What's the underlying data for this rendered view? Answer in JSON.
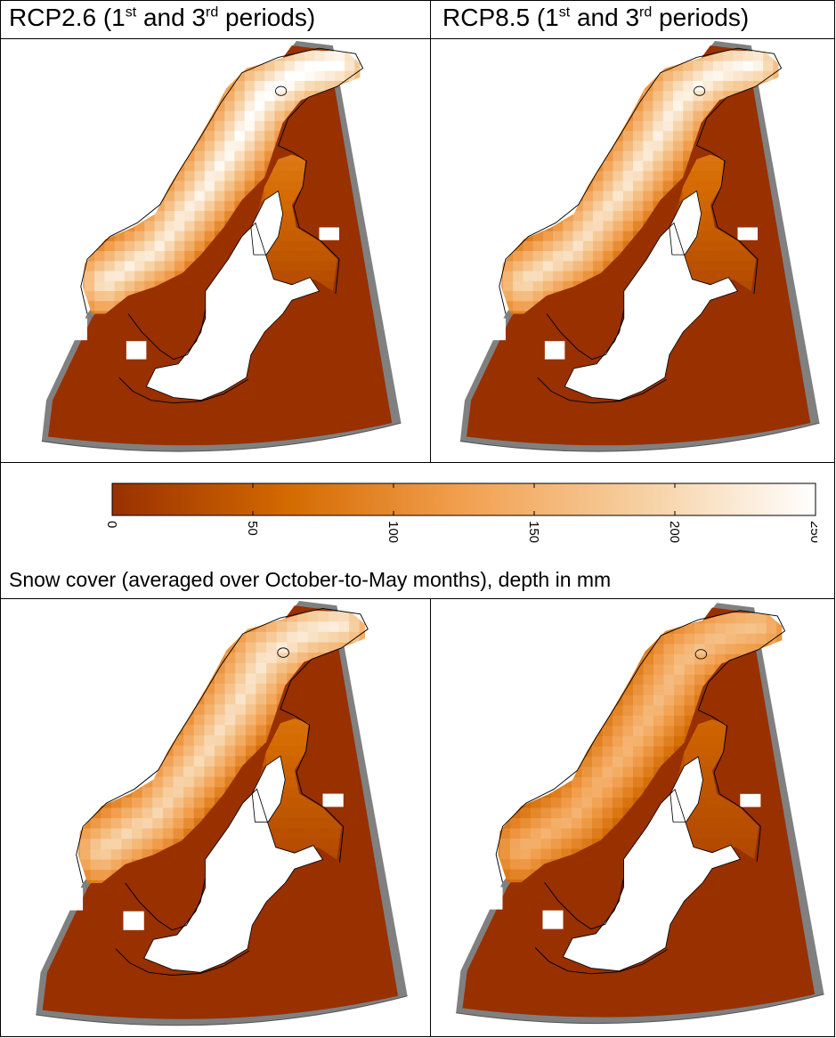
{
  "headers": {
    "left": {
      "prefix": "RCP2.6 (1",
      "sup1": "st",
      "mid": " and 3",
      "sup2": "rd",
      "suffix": " periods)"
    },
    "right": {
      "prefix": "RCP8.5 (1",
      "sup1": "st",
      "mid": " and 3",
      "sup2": "rd",
      "suffix": " periods)"
    }
  },
  "colorbar": {
    "min": 0,
    "max": 250,
    "ticks": [
      "0",
      "50",
      "100",
      "150",
      "200",
      "250"
    ],
    "colors": [
      "#983000",
      "#d46a00",
      "#f2a050",
      "#f6cfa0",
      "#ffffff"
    ]
  },
  "caption": "Snow cover (averaged over October-to-May months), depth in mm",
  "panels": [
    {
      "id": "rcp26-p1",
      "scenario": "RCP2.6",
      "peak_level": 1.0
    },
    {
      "id": "rcp85-p1",
      "scenario": "RCP8.5",
      "peak_level": 0.92
    },
    {
      "id": "rcp26-p3",
      "scenario": "RCP2.6",
      "peak_level": 0.85
    },
    {
      "id": "rcp85-p3",
      "scenario": "RCP8.5",
      "peak_level": 0.62
    }
  ],
  "colors": {
    "ocean_mask": "#808080",
    "land_base": "#983000",
    "lakes": "#ffffff"
  }
}
